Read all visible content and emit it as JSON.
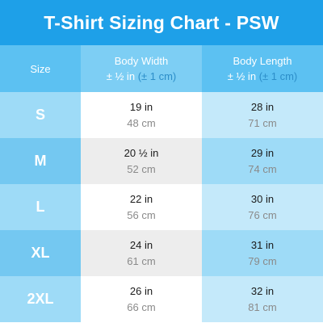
{
  "title": "T-Shirt Sizing Chart - PSW",
  "header": {
    "size_label": "Size",
    "width_label": "Body Width",
    "length_label": "Body Length",
    "tolerance_in": "± ½ in",
    "tolerance_cm": "(± 1 cm)"
  },
  "rows": [
    {
      "size": "S",
      "width_in": "19 in",
      "width_cm": "48 cm",
      "length_in": "28 in",
      "length_cm": "71 cm"
    },
    {
      "size": "M",
      "width_in": "20 ½ in",
      "width_cm": "52 cm",
      "length_in": "29 in",
      "length_cm": "74 cm"
    },
    {
      "size": "L",
      "width_in": "22 in",
      "width_cm": "56 cm",
      "length_in": "30 in",
      "length_cm": "76 cm"
    },
    {
      "size": "XL",
      "width_in": "24 in",
      "width_cm": "61 cm",
      "length_in": "31 in",
      "length_cm": "79 cm"
    },
    {
      "size": "2XL",
      "width_in": "26 in",
      "width_cm": "66 cm",
      "length_in": "32 in",
      "length_cm": "81 cm"
    }
  ],
  "colors": {
    "title_bg": "#1ea0e8",
    "header_bg": "#5cc1f2",
    "row_light": "#9edbf7",
    "row_dark": "#74c8f1"
  }
}
